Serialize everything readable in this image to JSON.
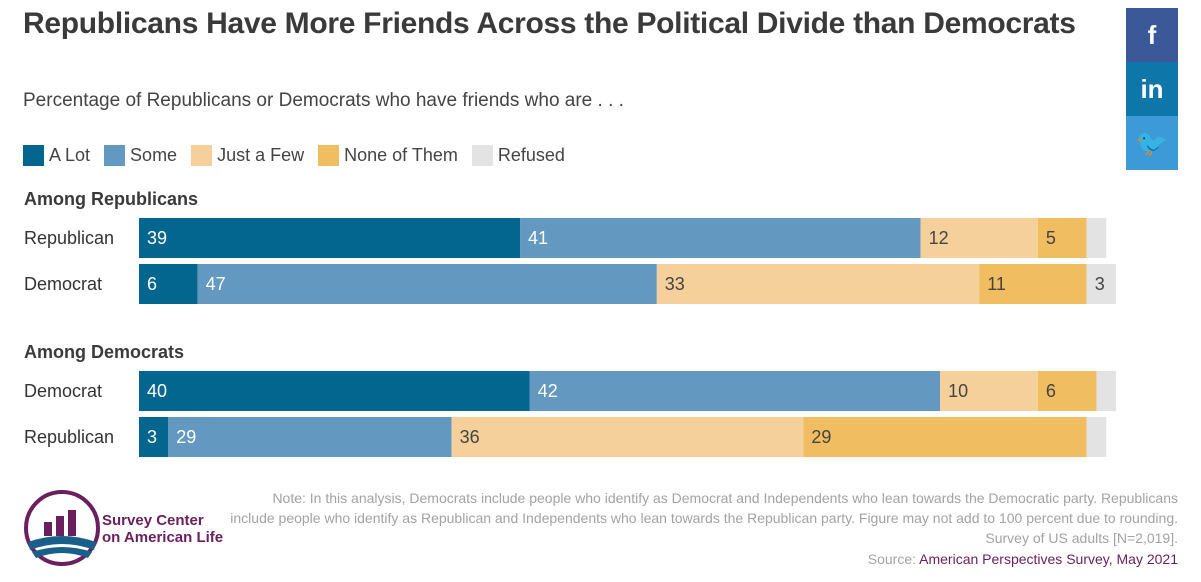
{
  "title": "Republicans Have More Friends Across the Political Divide than Democrats",
  "subtitle": "Percentage of Republicans or Democrats who have friends who are . . .",
  "social": [
    {
      "name": "facebook-icon",
      "glyph": "f",
      "color": "#3b5998"
    },
    {
      "name": "linkedin-icon",
      "glyph": "in",
      "color": "#0e76a8"
    },
    {
      "name": "twitter-icon",
      "glyph": "🐦",
      "color": "#3c9bd6"
    }
  ],
  "logo": {
    "line1": "Survey Center",
    "line2": "on American Life"
  },
  "note": "Note: In this analysis, Democrats include people who identify as Democrat and Independents who lean towards the Democratic party. Republicans include people who identify as Republican and Independents who lean towards the Republican party. Figure may not add to 100 percent due to rounding. Survey of US adults [N=2,019].",
  "source_label": "Source:",
  "source_name": "American Perspectives Survey, May 2021",
  "chart_data": {
    "type": "bar",
    "orientation": "horizontal",
    "stacked": true,
    "legend_position": "top-left",
    "series": [
      {
        "name": "A Lot",
        "color": "#03668f",
        "label_color": "#ffffff"
      },
      {
        "name": "Some",
        "color": "#6399c0",
        "label_color": "#ffffff"
      },
      {
        "name": "Just a Few",
        "color": "#f6d09a",
        "label_color": "#444444"
      },
      {
        "name": "None of Them",
        "color": "#f1bd61",
        "label_color": "#444444"
      },
      {
        "name": "Refused",
        "color": "#e3e3e3",
        "label_color": "#444444"
      }
    ],
    "groups": [
      {
        "label": "Among Republicans",
        "rows": [
          {
            "category": "Republican",
            "values": [
              39,
              41,
              12,
              5,
              2
            ],
            "labels": [
              "39",
              "41",
              "12",
              "5",
              ""
            ]
          },
          {
            "category": "Democrat",
            "values": [
              6,
              47,
              33,
              11,
              3
            ],
            "labels": [
              "6",
              "47",
              "33",
              "11",
              "3"
            ]
          }
        ]
      },
      {
        "label": "Among Democrats",
        "rows": [
          {
            "category": "Democrat",
            "values": [
              40,
              42,
              10,
              6,
              2
            ],
            "labels": [
              "40",
              "42",
              "10",
              "6",
              ""
            ]
          },
          {
            "category": "Republican",
            "values": [
              3,
              29,
              36,
              29,
              2
            ],
            "labels": [
              "3",
              "29",
              "36",
              "29",
              ""
            ]
          }
        ]
      }
    ]
  }
}
